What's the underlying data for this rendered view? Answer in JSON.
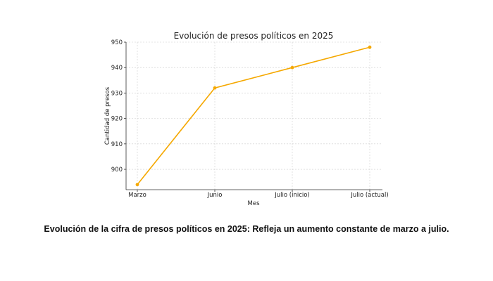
{
  "chart_data": {
    "type": "line",
    "title": "Evolución de presos políticos en 2025",
    "xlabel": "Mes",
    "ylabel": "Cantidad de presos",
    "categories": [
      "Marzo",
      "Junio",
      "Julio (inicio)",
      "Julio (actual)"
    ],
    "series": [
      {
        "values": [
          894,
          932,
          940,
          948
        ]
      }
    ],
    "ylim": [
      892,
      950
    ],
    "yticks": [
      900,
      910,
      920,
      930,
      940,
      950
    ],
    "grid": true,
    "colors": {
      "line": "#f5a800"
    }
  },
  "caption": "Evolución de la cifra de presos políticos en 2025: Refleja un aumento constante de marzo a julio."
}
